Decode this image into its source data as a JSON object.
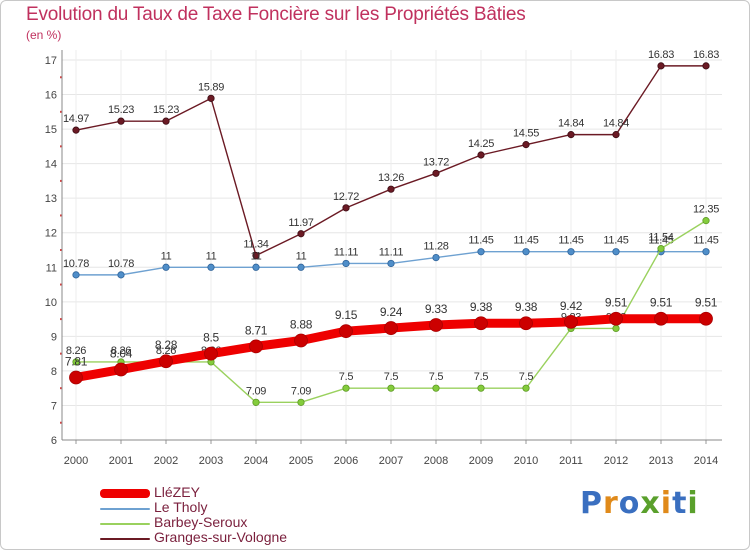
{
  "chart_data": {
    "type": "line",
    "title": "Evolution du Taux de Taxe Foncière sur les Propriétés Bâties",
    "ylabel": "(en %)",
    "xlabel": "",
    "ylim": [
      6,
      17
    ],
    "yticks": [
      6,
      7,
      8,
      9,
      10,
      11,
      12,
      13,
      14,
      15,
      16,
      17
    ],
    "categories": [
      "2000",
      "2001",
      "2002",
      "2003",
      "2004",
      "2005",
      "2006",
      "2007",
      "2008",
      "2009",
      "2010",
      "2011",
      "2012",
      "2013",
      "2014"
    ],
    "series": [
      {
        "name": "Granges-sur-Vologne",
        "color": "#6b1a24",
        "values": [
          14.97,
          15.23,
          15.23,
          15.89,
          11.34,
          11.97,
          12.72,
          13.26,
          13.72,
          14.25,
          14.55,
          14.84,
          14.84,
          16.83,
          16.83
        ],
        "labels": [
          "14.97",
          "15.23",
          "15.23",
          "15.89",
          "11.34",
          "11.97",
          "12.72",
          "13.26",
          "13.72",
          "14.25",
          "14.55",
          "14.84",
          "14.84",
          "16.83",
          "16.83"
        ]
      },
      {
        "name": "Le Tholy",
        "color": "#6ea1d1",
        "values": [
          10.78,
          10.78,
          11,
          11,
          11,
          11,
          11.11,
          11.11,
          11.28,
          11.45,
          11.45,
          11.45,
          11.45,
          11.45,
          11.45
        ],
        "labels": [
          "10.78",
          "10.78",
          "11",
          "11",
          "11",
          "11",
          "11.11",
          "11.11",
          "11.28",
          "11.45",
          "11.45",
          "11.45",
          "11.45",
          "11.45",
          "11.45"
        ]
      },
      {
        "name": "Barbey-Seroux",
        "color": "#9ad15e",
        "values": [
          8.26,
          8.26,
          8.26,
          8.26,
          7.09,
          7.09,
          7.5,
          7.5,
          7.5,
          7.5,
          7.5,
          9.23,
          9.23,
          11.54,
          12.35
        ],
        "labels": [
          "8.26",
          "8.26",
          "8.26",
          "8.26",
          "7.09",
          "7.09",
          "7.5",
          "7.5",
          "7.5",
          "7.5",
          "7.5",
          "9.23",
          "9.23",
          "11.54",
          "12.35"
        ]
      },
      {
        "name": "LléZEY",
        "color": "#ee0000",
        "values": [
          7.81,
          8.04,
          8.28,
          8.5,
          8.71,
          8.88,
          9.15,
          9.24,
          9.33,
          9.38,
          9.38,
          9.42,
          9.51,
          9.51,
          9.51
        ],
        "labels": [
          "7.81",
          "8.04",
          "8.28",
          "8.5",
          "8.71",
          "8.88",
          "9.15",
          "9.24",
          "9.33",
          "9.38",
          "9.38",
          "9.42",
          "9.51",
          "9.51",
          "9.51"
        ]
      }
    ]
  },
  "legend": [
    {
      "label": "LléZEY",
      "color": "#ee0000"
    },
    {
      "label": "Le Tholy",
      "color": "#6ea1d1"
    },
    {
      "label": "Barbey-Seroux",
      "color": "#9ad15e"
    },
    {
      "label": "Granges-sur-Vologne",
      "color": "#6b1a24"
    }
  ],
  "logo": {
    "letters": [
      "P",
      "r",
      "o",
      "x",
      "i",
      "t",
      "i"
    ]
  }
}
